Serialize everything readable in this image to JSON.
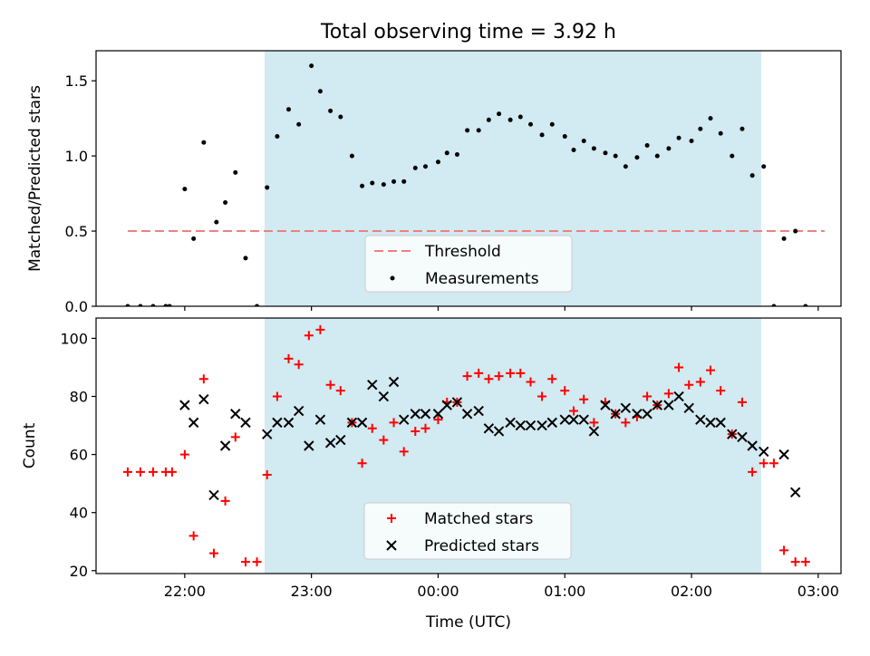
{
  "title": "Total observing time = 3.92 h",
  "colors": {
    "shade": "#add8e6",
    "threshold": "#f08080",
    "measurement": "#000000",
    "matched": "#ff0000",
    "predicted": "#000000"
  },
  "x_axis": {
    "label": "Time (UTC)",
    "ticks": [
      {
        "label": "22:00",
        "value": 22.0
      },
      {
        "label": "23:00",
        "value": 23.0
      },
      {
        "label": "00:00",
        "value": 24.0
      },
      {
        "label": "01:00",
        "value": 25.0
      },
      {
        "label": "02:00",
        "value": 26.0
      },
      {
        "label": "03:00",
        "value": 27.0
      }
    ]
  },
  "chart_data": [
    {
      "type": "scatter",
      "ylabel": "Matched/Predicted stars",
      "xlim": [
        21.3,
        27.18
      ],
      "ylim": [
        0,
        1.7
      ],
      "yticks": [
        0,
        0.5,
        1.0,
        1.5
      ],
      "ytick_labels": [
        "0.0",
        "0.5",
        "1.0",
        "1.5"
      ],
      "shaded_span": [
        22.63,
        26.55
      ],
      "threshold": {
        "name": "Threshold",
        "value": 0.5,
        "x_range": [
          21.55,
          27.05
        ]
      },
      "legend": {
        "position": "lower-center",
        "entries": [
          "Threshold",
          "Measurements"
        ]
      },
      "series": [
        {
          "name": "Measurements",
          "x": [
            21.55,
            21.65,
            21.75,
            21.85,
            21.88,
            22.0,
            22.07,
            22.15,
            22.25,
            22.32,
            22.4,
            22.48,
            22.57,
            22.65,
            22.73,
            22.82,
            22.9,
            23.0,
            23.07,
            23.15,
            23.23,
            23.32,
            23.4,
            23.48,
            23.57,
            23.65,
            23.73,
            23.82,
            23.9,
            24.0,
            24.07,
            24.15,
            24.23,
            24.32,
            24.4,
            24.48,
            24.57,
            24.65,
            24.73,
            24.82,
            24.9,
            25.0,
            25.07,
            25.15,
            25.23,
            25.32,
            25.4,
            25.48,
            25.57,
            25.65,
            25.73,
            25.82,
            25.9,
            26.0,
            26.07,
            26.15,
            26.23,
            26.32,
            26.4,
            26.48,
            26.57,
            26.65,
            26.73,
            26.82,
            26.9
          ],
          "values": [
            0,
            0,
            0,
            0,
            0,
            0.78,
            0.45,
            1.09,
            0.56,
            0.69,
            0.89,
            0.32,
            0,
            0.79,
            1.13,
            1.31,
            1.21,
            1.6,
            1.43,
            1.3,
            1.26,
            1.0,
            0.8,
            0.82,
            0.81,
            0.83,
            0.83,
            0.92,
            0.93,
            0.96,
            1.02,
            1.01,
            1.17,
            1.17,
            1.24,
            1.28,
            1.24,
            1.26,
            1.21,
            1.14,
            1.21,
            1.13,
            1.04,
            1.1,
            1.05,
            1.02,
            1.0,
            0.93,
            0.99,
            1.07,
            1.0,
            1.05,
            1.12,
            1.1,
            1.18,
            1.25,
            1.15,
            1.0,
            1.18,
            0.87,
            0.93,
            0,
            0.45,
            0.5,
            0
          ]
        }
      ]
    },
    {
      "type": "scatter",
      "ylabel": "Count",
      "xlabel": "Time (UTC)",
      "xlim": [
        21.3,
        27.18
      ],
      "ylim": [
        19,
        107
      ],
      "yticks": [
        20,
        40,
        60,
        80,
        100
      ],
      "ytick_labels": [
        "20",
        "40",
        "60",
        "80",
        "100"
      ],
      "shaded_span": [
        22.63,
        26.55
      ],
      "legend": {
        "position": "lower-center",
        "entries": [
          "Matched stars",
          "Predicted stars"
        ]
      },
      "series": [
        {
          "name": "Matched stars",
          "x": [
            21.55,
            21.65,
            21.75,
            21.85,
            21.9,
            22.0,
            22.07,
            22.15,
            22.23,
            22.32,
            22.4,
            22.48,
            22.57,
            22.65,
            22.73,
            22.82,
            22.9,
            22.98,
            23.07,
            23.15,
            23.23,
            23.32,
            23.4,
            23.48,
            23.57,
            23.65,
            23.73,
            23.82,
            23.9,
            24.0,
            24.07,
            24.15,
            24.23,
            24.32,
            24.4,
            24.48,
            24.57,
            24.65,
            24.73,
            24.82,
            24.9,
            25.0,
            25.07,
            25.15,
            25.23,
            25.32,
            25.4,
            25.48,
            25.57,
            25.65,
            25.73,
            25.82,
            25.9,
            25.98,
            26.07,
            26.15,
            26.23,
            26.32,
            26.4,
            26.48,
            26.57,
            26.65,
            26.73,
            26.82,
            26.9
          ],
          "values": [
            54,
            54,
            54,
            54,
            54,
            60,
            32,
            86,
            26,
            44,
            66,
            23,
            23,
            53,
            80,
            93,
            91,
            101,
            103,
            84,
            82,
            71,
            57,
            69,
            65,
            71,
            61,
            68,
            69,
            72,
            78,
            78,
            87,
            88,
            86,
            87,
            88,
            88,
            85,
            80,
            86,
            82,
            75,
            79,
            71,
            78,
            74,
            71,
            73,
            80,
            77,
            81,
            90,
            84,
            85,
            89,
            82,
            67,
            78,
            54,
            57,
            57,
            27,
            23,
            23
          ]
        },
        {
          "name": "Predicted stars",
          "x": [
            22.0,
            22.07,
            22.15,
            22.23,
            22.32,
            22.4,
            22.48,
            22.65,
            22.73,
            22.82,
            22.9,
            22.98,
            23.07,
            23.15,
            23.23,
            23.32,
            23.4,
            23.48,
            23.57,
            23.65,
            23.73,
            23.82,
            23.9,
            24.0,
            24.07,
            24.15,
            24.23,
            24.32,
            24.4,
            24.48,
            24.57,
            24.65,
            24.73,
            24.82,
            24.9,
            25.0,
            25.07,
            25.15,
            25.23,
            25.32,
            25.4,
            25.48,
            25.57,
            25.65,
            25.73,
            25.82,
            25.9,
            25.98,
            26.07,
            26.15,
            26.23,
            26.32,
            26.4,
            26.48,
            26.57,
            26.73,
            26.82
          ],
          "values": [
            77,
            71,
            79,
            46,
            63,
            74,
            71,
            67,
            71,
            71,
            75,
            63,
            72,
            64,
            65,
            71,
            71,
            84,
            80,
            85,
            72,
            74,
            74,
            74,
            77,
            78,
            74,
            75,
            69,
            68,
            71,
            70,
            70,
            70,
            71,
            72,
            72,
            72,
            68,
            77,
            74,
            76,
            74,
            74,
            77,
            77,
            80,
            76,
            72,
            71,
            71,
            67,
            66,
            63,
            61,
            60,
            47
          ]
        }
      ]
    }
  ]
}
